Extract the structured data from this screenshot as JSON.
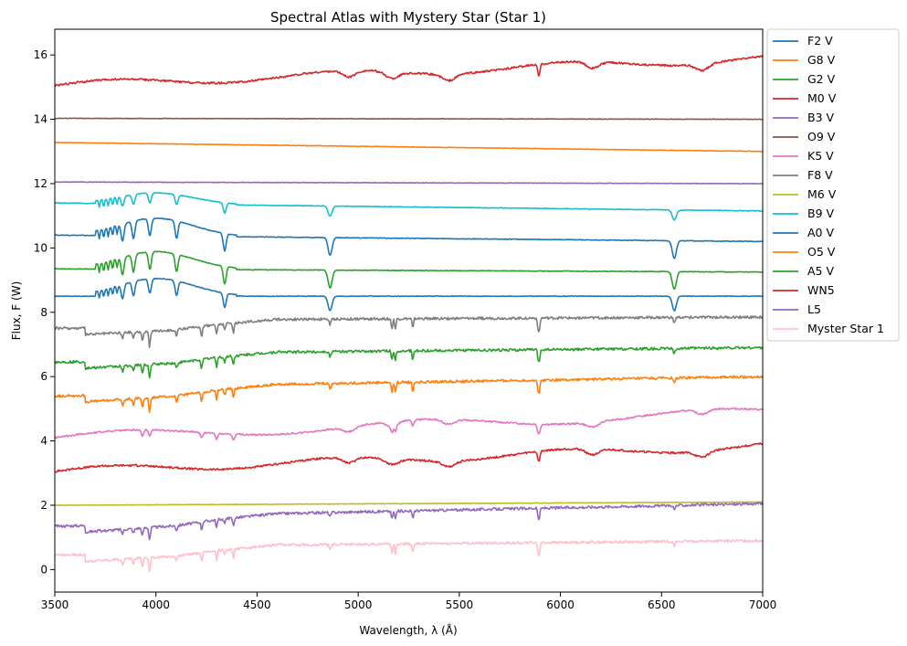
{
  "chart_data": {
    "type": "line",
    "title": "Spectral Atlas with Mystery Star (Star 1)",
    "xlabel": "Wavelength, λ (Å)",
    "ylabel": "Flux, F (W)",
    "xlim": [
      3500,
      7000
    ],
    "ylim": [
      -0.7,
      16.8
    ],
    "xticks": [
      "3500",
      "4000",
      "4500",
      "5000",
      "5500",
      "6000",
      "6500",
      "7000"
    ],
    "yticks": [
      "0",
      "2",
      "4",
      "6",
      "8",
      "10",
      "12",
      "14",
      "16"
    ],
    "grid": false,
    "legend_position": "outside-right-top",
    "series": [
      {
        "name": "F2 V",
        "color": "#1f77b4",
        "profile": "A0",
        "start": 8.5,
        "end": 8.5,
        "depth": 0.45
      },
      {
        "name": "G8 V",
        "color": "#ff7f0e",
        "profile": "G",
        "start": 5.4,
        "end": 5.75,
        "depth": 0.45
      },
      {
        "name": "G2 V",
        "color": "#2ca02c",
        "profile": "G",
        "start": 6.45,
        "end": 6.65,
        "depth": 0.4
      },
      {
        "name": "M0 V",
        "color": "#d62728",
        "profile": "M",
        "start": 3.05,
        "end": 3.85,
        "depth": 0.4
      },
      {
        "name": "B3 V",
        "color": "#9467bd",
        "profile": "flat",
        "start": 12.05,
        "end": 12.0,
        "depth": 0.0
      },
      {
        "name": "O9 V",
        "color": "#8c564b",
        "profile": "flat",
        "start": 14.03,
        "end": 14.0,
        "depth": 0.0
      },
      {
        "name": "K5 V",
        "color": "#e377c2",
        "profile": "K",
        "start": 4.1,
        "end": 4.9,
        "depth": 0.3
      },
      {
        "name": "F8 V",
        "color": "#7f7f7f",
        "profile": "F",
        "start": 7.5,
        "end": 7.6,
        "depth": 0.45
      },
      {
        "name": "M6 V",
        "color": "#bcbd22",
        "profile": "flat",
        "start": 2.0,
        "end": 2.1,
        "depth": 0.0
      },
      {
        "name": "B9 V",
        "color": "#17becf",
        "profile": "B",
        "start": 11.4,
        "end": 11.15,
        "depth": 0.45
      },
      {
        "name": "A0 V",
        "color": "#1f77b4",
        "profile": "A0",
        "start": 10.4,
        "end": 10.2,
        "depth": 0.55
      },
      {
        "name": "O5 V",
        "color": "#ff7f0e",
        "profile": "flat",
        "start": 13.28,
        "end": 13.0,
        "depth": 0.0
      },
      {
        "name": "A5 V",
        "color": "#2ca02c",
        "profile": "A0",
        "start": 9.35,
        "end": 9.25,
        "depth": 0.55
      },
      {
        "name": "WN5",
        "color": "#d62728",
        "profile": "M",
        "start": 15.05,
        "end": 15.9,
        "depth": 0.45
      },
      {
        "name": "L5",
        "color": "#9467bd",
        "profile": "G",
        "start": 1.35,
        "end": 1.8,
        "depth": 0.35
      },
      {
        "name": "Myster Star 1",
        "color": "#ffc0cb",
        "profile": "G",
        "start": 0.45,
        "end": 0.65,
        "depth": 0.4
      }
    ]
  }
}
